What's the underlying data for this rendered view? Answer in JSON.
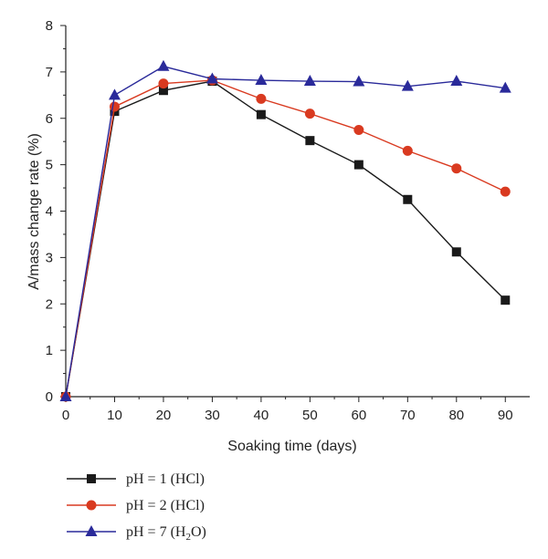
{
  "chart_data": {
    "type": "line",
    "xlabel": "Soaking time (days)",
    "ylabel": "A/mass change rate (%)",
    "xlim": [
      0,
      95
    ],
    "ylim": [
      0,
      8
    ],
    "xticks": [
      0,
      10,
      20,
      30,
      40,
      50,
      60,
      70,
      80,
      90
    ],
    "yticks": [
      0,
      1,
      2,
      3,
      4,
      5,
      6,
      7,
      8
    ],
    "grid": false,
    "legend": "bottom-left",
    "x": [
      0,
      10,
      20,
      30,
      40,
      50,
      60,
      70,
      80,
      90
    ],
    "series": [
      {
        "name": "pH = 1 (HCl)",
        "legend": {
          "base": "pH = 1 (HCl)",
          "sub": "",
          "tail": ""
        },
        "color": "#1a1a1a",
        "marker": "square",
        "values": [
          0,
          6.15,
          6.6,
          6.8,
          6.08,
          5.52,
          5.0,
          4.25,
          3.12,
          2.08
        ]
      },
      {
        "name": "pH = 2 (HCl)",
        "legend": {
          "base": "pH = 2 (HCl)",
          "sub": "",
          "tail": ""
        },
        "color": "#d93a20",
        "marker": "circle",
        "values": [
          0,
          6.25,
          6.75,
          6.82,
          6.42,
          6.1,
          5.75,
          5.3,
          4.92,
          4.42
        ]
      },
      {
        "name": "pH = 7 (H2O)",
        "legend": {
          "base": "pH = 7 (H",
          "sub": "2",
          "tail": "O)"
        },
        "color": "#2a2a9a",
        "marker": "triangle",
        "values": [
          0,
          6.5,
          7.12,
          6.85,
          6.82,
          6.8,
          6.79,
          6.69,
          6.8,
          6.65
        ]
      }
    ]
  }
}
